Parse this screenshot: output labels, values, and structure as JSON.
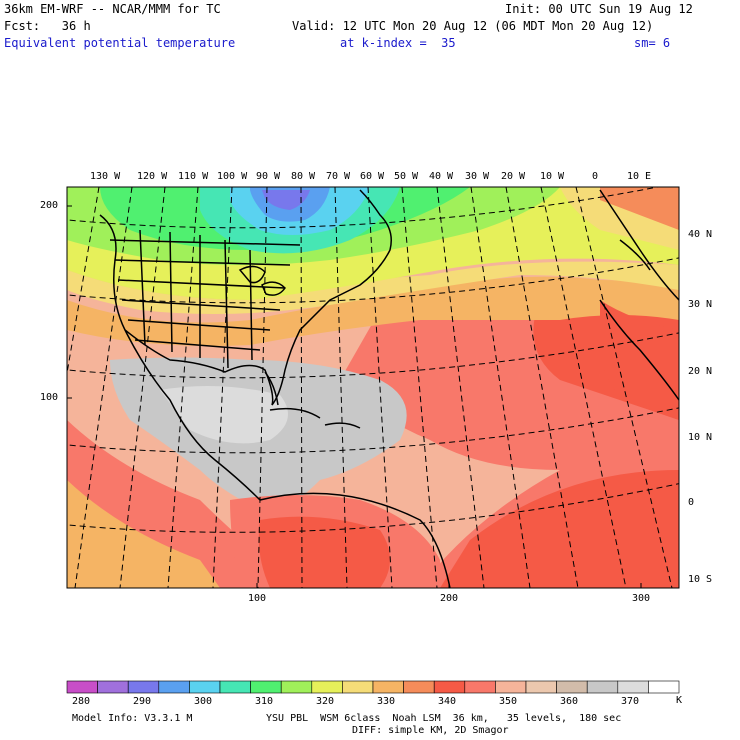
{
  "header": {
    "model_title": "36km EM-WRF -- NCAR/MMM for TC",
    "init_label": "Init: 00 UTC Sun 19 Aug 12",
    "fcst_label": "Fcst:   36 h",
    "valid_label": "Valid: 12 UTC Mon 20 Aug 12 (06 MDT Mon 20 Aug 12)",
    "field_name": "Equivalent potential temperature",
    "level_label": "at k-index =  35",
    "smoothing_label": "sm= 6"
  },
  "map": {
    "lon_labels": [
      "130 W",
      "120 W",
      "110 W",
      "100 W",
      "90 W",
      "80 W",
      "70 W",
      "60 W",
      "50 W",
      "40 W",
      "30 W",
      "20 W",
      "10 W",
      "0",
      "10 E"
    ],
    "lat_labels": [
      "40 N",
      "30 N",
      "20 N",
      "10 N",
      "0",
      "10 S"
    ],
    "left_axis_ticks": [
      "200",
      "100"
    ],
    "bottom_axis_ticks": [
      "100",
      "200",
      "300"
    ]
  },
  "colorbar": {
    "labels": [
      "280",
      "290",
      "300",
      "310",
      "320",
      "330",
      "340",
      "350",
      "360",
      "370"
    ],
    "unit": "K",
    "colors": [
      "#c84ec8",
      "#a070dc",
      "#7878ec",
      "#5aa0f0",
      "#5ad2f0",
      "#46e6b4",
      "#50f070",
      "#a0f05a",
      "#e6f05a",
      "#f5dc78",
      "#f5b464",
      "#f58c5a",
      "#f55a46",
      "#f8786a",
      "#f5b49a",
      "#ecc8ae",
      "#d2bcaa",
      "#c8c8c8",
      "#dcdcdc",
      "#ffffff"
    ]
  },
  "footer": {
    "model_info": "Model Info: V3.3.1 M",
    "physics": "YSU PBL  WSM 6class  Noah LSM  36 km,   35 levels,  180 sec",
    "diffusion": "DIFF: simple KM, 2D Smagor"
  }
}
